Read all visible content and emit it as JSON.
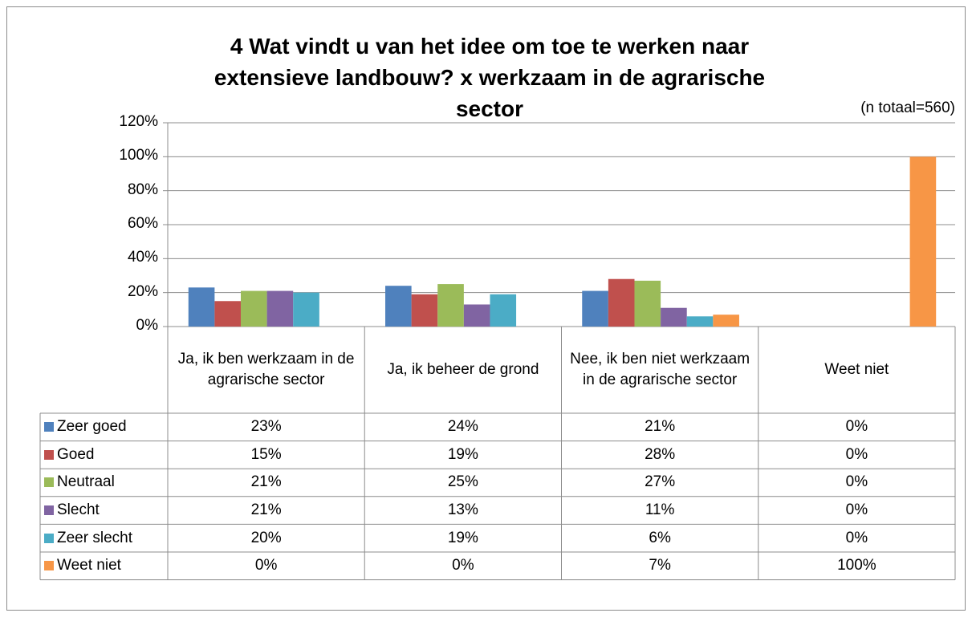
{
  "chart_data": {
    "type": "bar",
    "title": "4 Wat vindt u van het idee om toe te werken naar extensieve landbouw? x werkzaam in de agrarische sector",
    "subtitle": "(n totaal=560)",
    "categories": [
      "Ja, ik ben werkzaam in de agrarische sector",
      "Ja, ik beheer de grond",
      "Nee, ik ben niet werkzaam in de agrarische sector",
      "Weet niet"
    ],
    "series": [
      {
        "name": "Zeer goed",
        "color": "#4f81bd",
        "values": [
          23,
          24,
          21,
          0
        ],
        "value_labels": [
          "23%",
          "24%",
          "21%",
          "0%"
        ]
      },
      {
        "name": "Goed",
        "color": "#c0504d",
        "values": [
          15,
          19,
          28,
          0
        ],
        "value_labels": [
          "15%",
          "19%",
          "28%",
          "0%"
        ]
      },
      {
        "name": "Neutraal",
        "color": "#9bbb59",
        "values": [
          21,
          25,
          27,
          0
        ],
        "value_labels": [
          "21%",
          "25%",
          "27%",
          "0%"
        ]
      },
      {
        "name": "Slecht",
        "color": "#8064a2",
        "values": [
          21,
          13,
          11,
          0
        ],
        "value_labels": [
          "21%",
          "13%",
          "11%",
          "0%"
        ]
      },
      {
        "name": "Zeer slecht",
        "color": "#4bacc6",
        "values": [
          20,
          19,
          6,
          0
        ],
        "value_labels": [
          "20%",
          "19%",
          "6%",
          "0%"
        ]
      },
      {
        "name": "Weet niet",
        "color": "#f79646",
        "values": [
          0,
          0,
          7,
          100
        ],
        "value_labels": [
          "0%",
          "0%",
          "7%",
          "100%"
        ]
      }
    ],
    "ylim": [
      0,
      120
    ],
    "yticks": [
      {
        "value": 0,
        "label": "0%"
      },
      {
        "value": 20,
        "label": "20%"
      },
      {
        "value": 40,
        "label": "40%"
      },
      {
        "value": 60,
        "label": "60%"
      },
      {
        "value": 80,
        "label": "80%"
      },
      {
        "value": 100,
        "label": "100%"
      },
      {
        "value": 120,
        "label": "120%"
      }
    ],
    "grid": true
  }
}
